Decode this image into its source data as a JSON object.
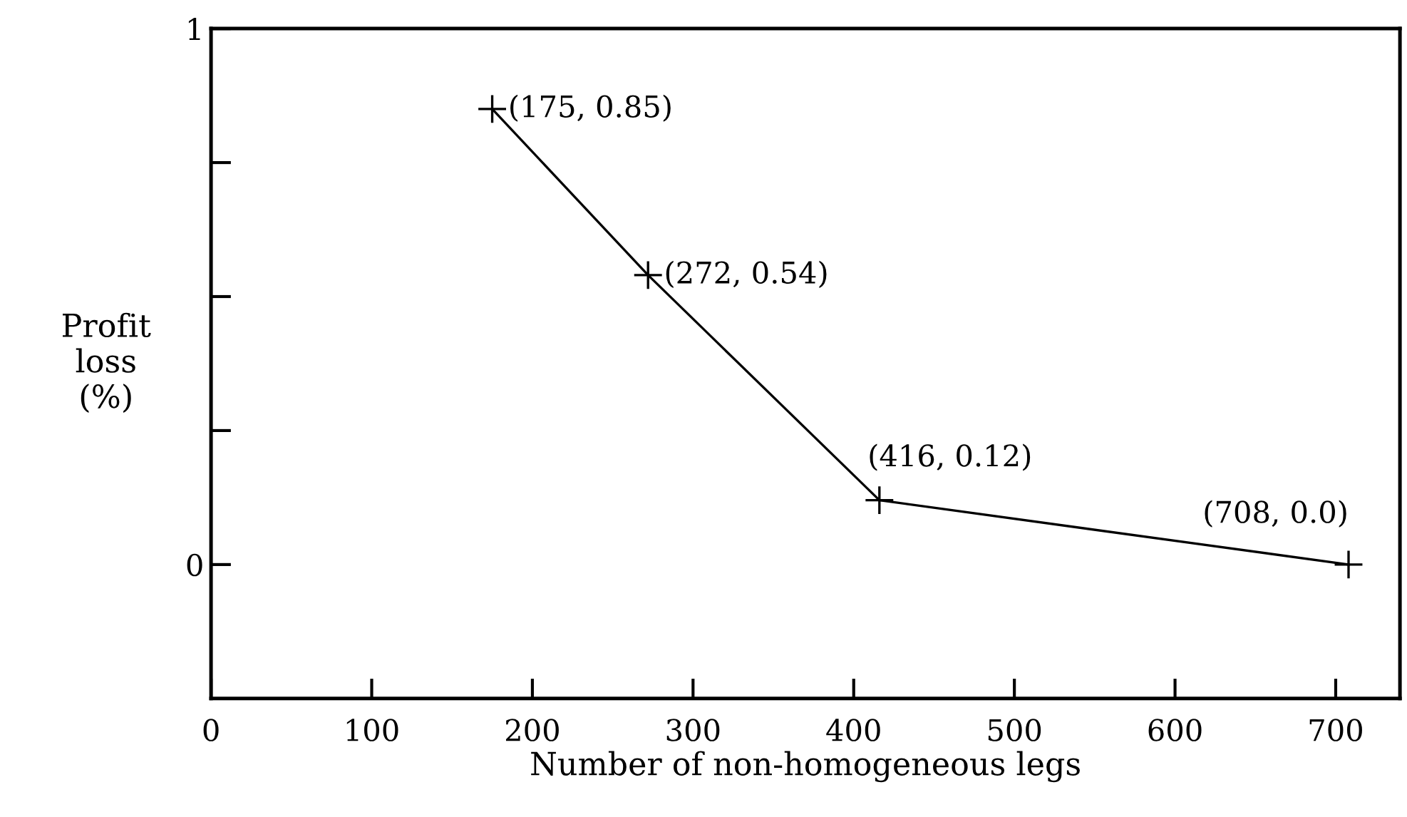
{
  "chart_data": {
    "type": "line",
    "xlabel": "Number of non-homogeneous legs",
    "ylabel": "Profit\nloss\n(%)",
    "x": [
      175,
      272,
      416,
      708
    ],
    "series": [
      {
        "color": "#000000",
        "values": [
          0.85,
          0.54,
          0.12,
          0.0
        ],
        "value_labels": [
          "(175, 0.85)",
          "(272, 0.54)",
          "(416, 0.12)",
          "(708, 0.0)"
        ]
      }
    ],
    "xlim": [
      0,
      740
    ],
    "xticks": [
      0,
      100,
      200,
      300,
      400,
      500,
      600,
      700
    ],
    "ylim": [
      -0.25,
      1
    ],
    "yticks": [
      0,
      {
        "value": 0.25,
        "label": null
      },
      {
        "value": 0.5,
        "label": null
      },
      {
        "value": 0.75,
        "label": null
      },
      1
    ],
    "marker": "cross",
    "line_style": "solid",
    "grid": false,
    "legend": false
  }
}
